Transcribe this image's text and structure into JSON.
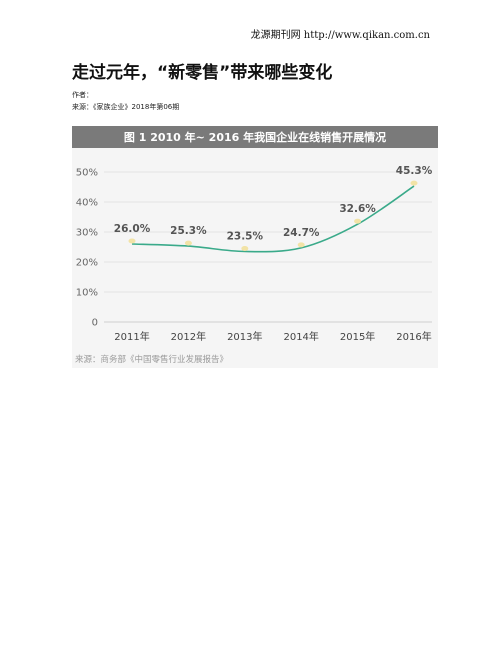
{
  "site": {
    "header": "龙源期刊网 http://www.qikan.com.cn"
  },
  "article": {
    "title": "走过元年，“新零售”带来哪些变化",
    "author_line": "作者：",
    "source_line": "来源：《家族企业》2018年第06期"
  },
  "figure": {
    "title": "图 1  2010 年~ 2016 年我国企业在线销售开展情况",
    "source": "来源：商务部《中国零售行业发展报告》",
    "colors": {
      "title_bar": "#7a7a7a",
      "line": "#3aaa8a",
      "marker": "#f2e3a6",
      "grid": "#e4e4e4",
      "background": "#f5f5f5"
    }
  },
  "chart_data": {
    "type": "line",
    "title": "图 1  2010 年~ 2016 年我国企业在线销售开展情况",
    "categories": [
      "2011年",
      "2012年",
      "2013年",
      "2014年",
      "2015年",
      "2016年"
    ],
    "values": [
      26.0,
      25.3,
      23.5,
      24.7,
      32.6,
      45.3
    ],
    "data_labels": [
      "26.0%",
      "25.3%",
      "23.5%",
      "24.7%",
      "32.6%",
      "45.3%"
    ],
    "y_ticks": [
      "0",
      "10%",
      "20%",
      "30%",
      "40%",
      "50%"
    ],
    "ylim": [
      0,
      50
    ],
    "grid": true,
    "xlabel": "",
    "ylabel": ""
  }
}
